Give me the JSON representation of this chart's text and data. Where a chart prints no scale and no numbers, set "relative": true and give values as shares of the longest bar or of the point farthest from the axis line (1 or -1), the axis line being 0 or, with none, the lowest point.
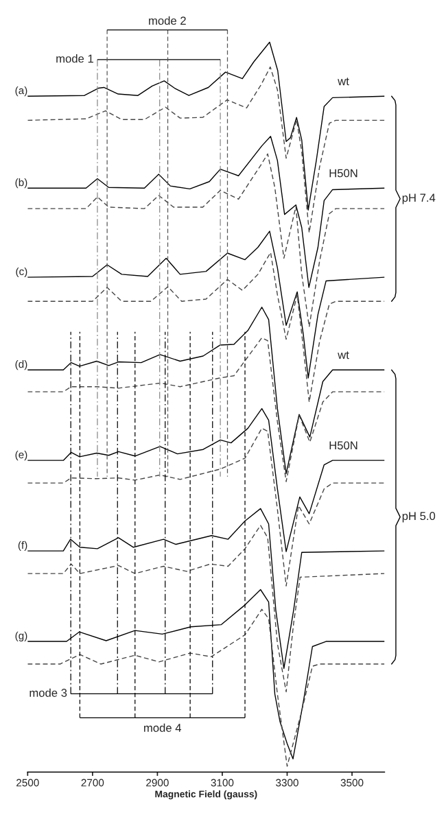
{
  "chart_data": {
    "type": "line",
    "relative": true,
    "xlabel": "Magnetic Field (gauss)",
    "xlim": [
      2500,
      3600
    ],
    "xticks": [
      2500,
      2700,
      2900,
      3100,
      3300,
      3500
    ],
    "series": [
      {
        "name": "(a)",
        "color": "#000000",
        "line_style": "solid",
        "x": [
          2500,
          2675,
          2718,
          2735,
          2779,
          2840,
          2884,
          2921,
          2953,
          2997,
          3057,
          3110,
          3162,
          3197,
          3246,
          3271,
          3297,
          3310,
          3329,
          3345,
          3365,
          3390,
          3414,
          3440,
          3600
        ],
        "values": [
          0.926,
          0.927,
          0.937,
          0.938,
          0.929,
          0.927,
          0.94,
          0.947,
          0.937,
          0.927,
          0.938,
          0.959,
          0.95,
          0.973,
          1.0,
          0.961,
          0.864,
          0.869,
          0.897,
          0.866,
          0.77,
          0.838,
          0.912,
          0.924,
          0.926
        ]
      },
      {
        "color": "#444444",
        "line_style": "dashed",
        "x": [
          2500,
          2680,
          2740,
          2790,
          2860,
          2925,
          2970,
          3040,
          3115,
          3175,
          3220,
          3248,
          3270,
          3297,
          3329,
          3345,
          3368,
          3400,
          3430,
          3450,
          3600
        ],
        "values": [
          0.893,
          0.895,
          0.906,
          0.894,
          0.894,
          0.911,
          0.896,
          0.897,
          0.921,
          0.91,
          0.942,
          0.966,
          0.935,
          0.841,
          0.894,
          0.85,
          0.739,
          0.829,
          0.889,
          0.893,
          0.893
        ]
      },
      {
        "name": "(b)",
        "color": "#000000",
        "line_style": "solid",
        "x": [
          2500,
          2680,
          2715,
          2750,
          2860,
          2904,
          2940,
          3000,
          3060,
          3094,
          3150,
          3222,
          3249,
          3270,
          3292,
          3327,
          3345,
          3367,
          3395,
          3414,
          3440,
          3600
        ],
        "values": [
          0.8,
          0.8,
          0.813,
          0.801,
          0.8,
          0.819,
          0.803,
          0.799,
          0.809,
          0.826,
          0.817,
          0.858,
          0.871,
          0.838,
          0.764,
          0.777,
          0.746,
          0.664,
          0.719,
          0.783,
          0.798,
          0.8
        ]
      },
      {
        "color": "#444444",
        "line_style": "dashed",
        "x": [
          2500,
          2680,
          2715,
          2750,
          2860,
          2904,
          2950,
          3040,
          3094,
          3150,
          3218,
          3240,
          3262,
          3290,
          3327,
          3345,
          3368,
          3400,
          3430,
          3450,
          3600
        ],
        "values": [
          0.772,
          0.772,
          0.788,
          0.774,
          0.772,
          0.79,
          0.774,
          0.774,
          0.797,
          0.785,
          0.831,
          0.847,
          0.801,
          0.704,
          0.775,
          0.682,
          0.61,
          0.7,
          0.765,
          0.772,
          0.772
        ]
      },
      {
        "name": "(c)",
        "color": "#000000",
        "line_style": "solid",
        "x": [
          2500,
          2700,
          2745,
          2790,
          2870,
          2927,
          2970,
          3050,
          3116,
          3170,
          3210,
          3246,
          3270,
          3297,
          3331,
          3350,
          3365,
          3395,
          3420,
          3600
        ],
        "values": [
          0.678,
          0.679,
          0.695,
          0.682,
          0.679,
          0.704,
          0.682,
          0.686,
          0.711,
          0.702,
          0.719,
          0.741,
          0.691,
          0.612,
          0.658,
          0.599,
          0.54,
          0.627,
          0.673,
          0.678
        ]
      },
      {
        "color": "#444444",
        "line_style": "dashed",
        "x": [
          2500,
          2700,
          2745,
          2790,
          2880,
          2932,
          2975,
          3050,
          3116,
          3162,
          3210,
          3249,
          3270,
          3297,
          3331,
          3350,
          3368,
          3400,
          3430,
          3450,
          3600
        ],
        "values": [
          0.645,
          0.645,
          0.664,
          0.645,
          0.645,
          0.665,
          0.645,
          0.648,
          0.675,
          0.66,
          0.682,
          0.712,
          0.654,
          0.593,
          0.654,
          0.581,
          0.507,
          0.59,
          0.641,
          0.645,
          0.645
        ]
      },
      {
        "name": "(d)",
        "color": "#000000",
        "line_style": "solid",
        "x": [
          2500,
          2610,
          2634,
          2660,
          2713,
          2750,
          2780,
          2850,
          2908,
          2970,
          3041,
          3093,
          3136,
          3179,
          3222,
          3243,
          3270,
          3297,
          3337,
          3370,
          3410,
          3440,
          3600
        ],
        "values": [
          0.551,
          0.551,
          0.561,
          0.556,
          0.563,
          0.557,
          0.562,
          0.561,
          0.572,
          0.563,
          0.57,
          0.585,
          0.586,
          0.605,
          0.637,
          0.62,
          0.498,
          0.409,
          0.49,
          0.459,
          0.535,
          0.551,
          0.551
        ]
      },
      {
        "color": "#444444",
        "line_style": "dashed",
        "x": [
          2500,
          2610,
          2634,
          2713,
          2780,
          2910,
          2970,
          3093,
          3136,
          3222,
          3240,
          3270,
          3297,
          3337,
          3370,
          3410,
          3440,
          3600
        ],
        "values": [
          0.521,
          0.521,
          0.528,
          0.528,
          0.526,
          0.533,
          0.528,
          0.54,
          0.543,
          0.595,
          0.591,
          0.48,
          0.398,
          0.489,
          0.452,
          0.507,
          0.521,
          0.521
        ]
      },
      {
        "name": "(e)",
        "color": "#000000",
        "line_style": "solid",
        "x": [
          2500,
          2610,
          2634,
          2660,
          2713,
          2750,
          2780,
          2831,
          2908,
          2962,
          3041,
          3094,
          3127,
          3179,
          3222,
          3243,
          3270,
          3297,
          3339,
          3368,
          3414,
          3440,
          3600
        ],
        "values": [
          0.427,
          0.427,
          0.438,
          0.432,
          0.437,
          0.434,
          0.439,
          0.433,
          0.446,
          0.436,
          0.442,
          0.455,
          0.451,
          0.471,
          0.498,
          0.482,
          0.388,
          0.302,
          0.377,
          0.354,
          0.421,
          0.427,
          0.427
        ]
      },
      {
        "color": "#444444",
        "line_style": "dashed",
        "x": [
          2500,
          2610,
          2634,
          2713,
          2780,
          2831,
          2908,
          2970,
          3093,
          3170,
          3222,
          3240,
          3270,
          3297,
          3335,
          3368,
          3414,
          3440,
          3600
        ],
        "values": [
          0.396,
          0.396,
          0.403,
          0.402,
          0.403,
          0.4,
          0.407,
          0.401,
          0.415,
          0.43,
          0.471,
          0.467,
          0.36,
          0.255,
          0.365,
          0.34,
          0.388,
          0.396,
          0.396
        ]
      },
      {
        "name": "(f)",
        "color": "#000000",
        "line_style": "solid",
        "x": [
          2500,
          2610,
          2632,
          2661,
          2715,
          2780,
          2826,
          2919,
          2957,
          3067,
          3118,
          3170,
          3218,
          3243,
          3265,
          3290,
          3320,
          3345,
          3600
        ],
        "values": [
          0.303,
          0.303,
          0.319,
          0.308,
          0.306,
          0.321,
          0.308,
          0.319,
          0.312,
          0.324,
          0.319,
          0.344,
          0.361,
          0.34,
          0.222,
          0.142,
          0.222,
          0.301,
          0.303
        ]
      },
      {
        "color": "#444444",
        "line_style": "dashed",
        "x": [
          2500,
          2610,
          2634,
          2661,
          2780,
          2831,
          2919,
          2990,
          3063,
          3118,
          3170,
          3218,
          3240,
          3270,
          3297,
          3320,
          3340,
          3600
        ],
        "values": [
          0.272,
          0.272,
          0.285,
          0.272,
          0.283,
          0.272,
          0.282,
          0.275,
          0.285,
          0.282,
          0.306,
          0.338,
          0.321,
          0.176,
          0.11,
          0.204,
          0.267,
          0.272
        ]
      },
      {
        "name": "(g)",
        "color": "#000000",
        "line_style": "solid",
        "x": [
          2500,
          2620,
          2659,
          2742,
          2831,
          2915,
          3003,
          3097,
          3170,
          3218,
          3243,
          3262,
          3278,
          3300,
          3318,
          3351,
          3378,
          3420,
          3600
        ],
        "values": [
          0.179,
          0.179,
          0.192,
          0.18,
          0.194,
          0.189,
          0.199,
          0.202,
          0.229,
          0.25,
          0.233,
          0.107,
          0.069,
          0.039,
          0.018,
          0.099,
          0.172,
          0.179,
          0.179
        ]
      },
      {
        "color": "#444444",
        "line_style": "dashed",
        "x": [
          2500,
          2600,
          2661,
          2726,
          2831,
          2905,
          3001,
          3066,
          3170,
          3222,
          3243,
          3270,
          3300,
          3343,
          3378,
          3400,
          3600
        ],
        "values": [
          0.148,
          0.148,
          0.161,
          0.148,
          0.16,
          0.151,
          0.163,
          0.158,
          0.188,
          0.223,
          0.21,
          0.107,
          0.008,
          0.08,
          0.145,
          0.148,
          0.148
        ]
      }
    ],
    "ref_lines": [
      {
        "axis": "x",
        "value": 2715,
        "color": "#888888",
        "line_style": "dashdot"
      },
      {
        "axis": "x",
        "value": 2907,
        "color": "#888888",
        "line_style": "dashdot"
      },
      {
        "axis": "x",
        "value": 3094,
        "color": "#888888",
        "line_style": "dashdot"
      },
      {
        "axis": "x",
        "value": 2745,
        "color": "#555555",
        "line_style": "dashed"
      },
      {
        "axis": "x",
        "value": 2932,
        "color": "#555555",
        "line_style": "dashed"
      },
      {
        "axis": "x",
        "value": 3116,
        "color": "#555555",
        "line_style": "dashed"
      },
      {
        "axis": "x",
        "value": 2633,
        "color": "#000000",
        "line_style": "dashdot"
      },
      {
        "axis": "x",
        "value": 2777,
        "color": "#000000",
        "line_style": "dashdot"
      },
      {
        "axis": "x",
        "value": 2924,
        "color": "#000000",
        "line_style": "dashdot"
      },
      {
        "axis": "x",
        "value": 3070,
        "color": "#000000",
        "line_style": "dashdot"
      },
      {
        "axis": "x",
        "value": 2661,
        "color": "#000000",
        "line_style": "dashed"
      },
      {
        "axis": "x",
        "value": 2831,
        "color": "#000000",
        "line_style": "dashed"
      },
      {
        "axis": "x",
        "value": 3001,
        "color": "#000000",
        "line_style": "dashed"
      },
      {
        "axis": "x",
        "value": 3170,
        "color": "#000000",
        "line_style": "dashed"
      }
    ],
    "annotations": [
      "mode 1",
      "mode 2",
      "mode 3",
      "mode 4",
      "wt",
      "H50N",
      "pH 7.4",
      "wt",
      "H50N",
      "pH 5.0"
    ]
  }
}
